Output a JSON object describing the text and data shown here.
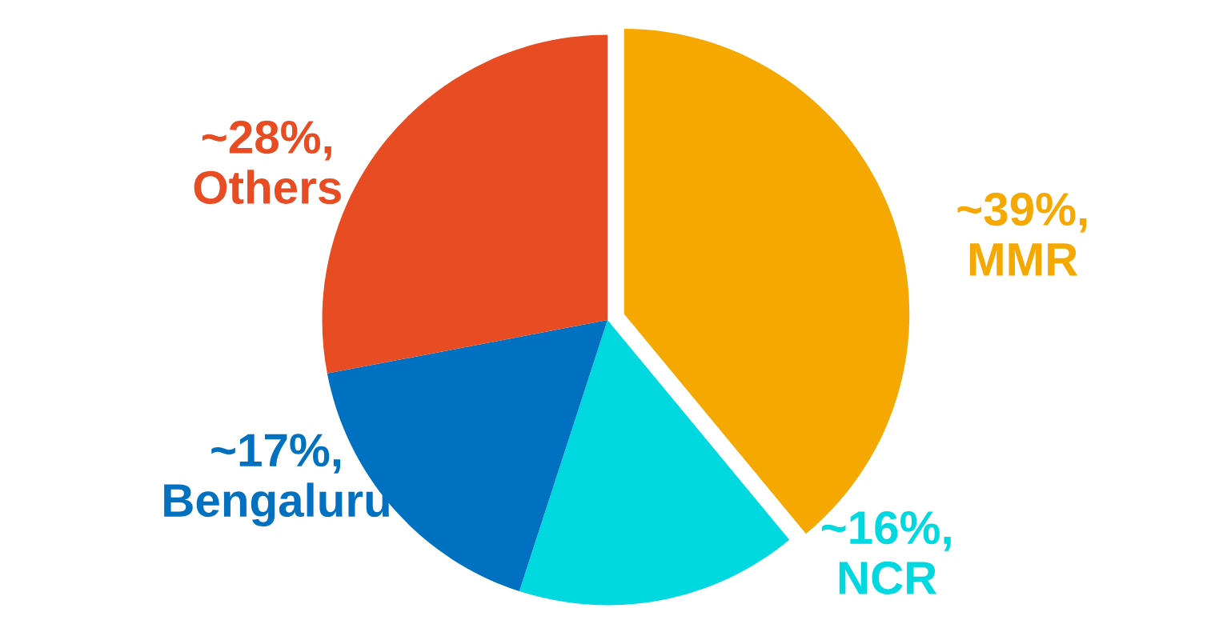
{
  "chart_data": {
    "type": "pie",
    "categories": [
      "MMR",
      "NCR",
      "Bengaluru",
      "Others"
    ],
    "values": [
      39,
      16,
      17,
      28
    ],
    "value_labels": [
      "~39%,",
      "~16%,",
      "~17%,",
      "~28%,"
    ],
    "colors": [
      "#f5a800",
      "#00d8e0",
      "#0070c0",
      "#e84c22"
    ],
    "legend": false
  }
}
